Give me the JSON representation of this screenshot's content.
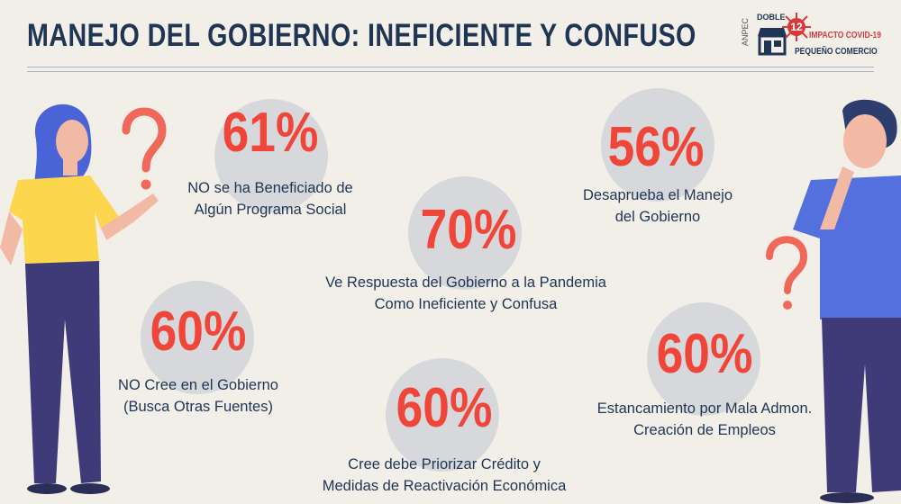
{
  "header": {
    "title": "MANEJO DEL GOBIERNO: INEFICIENTE Y CONFUSO"
  },
  "logo": {
    "vertical_text": "ANPEC",
    "brand": "DOBLE",
    "number": "12",
    "line1": "IMPACTO COVID-19",
    "line2": "PEQUEÑO COMERCIO"
  },
  "stats": [
    {
      "value": "61%",
      "line1": "NO se ha Beneficiado de",
      "line2": "Algún Programa Social"
    },
    {
      "value": "56%",
      "line1": "Desaprueba el Manejo",
      "line2": "del Gobierno"
    },
    {
      "value": "70%",
      "line1": "Ve Respuesta del Gobierno a la Pandemia",
      "line2": "Como Ineficiente y Confusa"
    },
    {
      "value": "60%",
      "line1": "NO Cree en el Gobierno",
      "line2": "(Busca Otras Fuentes)"
    },
    {
      "value": "60%",
      "line1": "Estancamiento por Mala Admon.",
      "line2": "Creación de Empleos"
    },
    {
      "value": "60%",
      "line1": "Cree debe Priorizar Crédito y",
      "line2": "Medidas de Reactivación Económica"
    }
  ],
  "colors": {
    "title": "#1f3553",
    "accent": "#f0463a",
    "circle": "#d6d8dc",
    "background": "#f2efe9"
  }
}
